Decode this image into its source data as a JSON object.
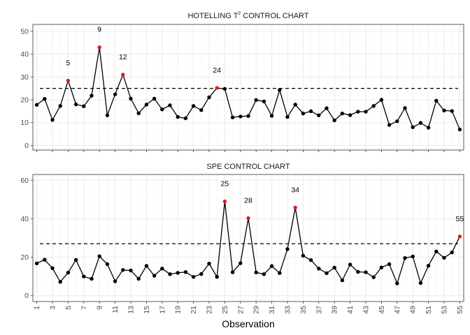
{
  "chart_data": [
    {
      "type": "line",
      "title": "HOTELLING T",
      "title_superscript": "2",
      "title_suffix": " CONTROL CHART",
      "ylim": [
        -2,
        53
      ],
      "yticks": [
        0,
        10,
        20,
        30,
        40,
        50
      ],
      "control_limit": 25,
      "x": [
        1,
        2,
        3,
        4,
        5,
        6,
        7,
        8,
        9,
        10,
        11,
        12,
        13,
        14,
        15,
        16,
        17,
        18,
        19,
        20,
        21,
        22,
        23,
        24,
        25,
        26,
        27,
        28,
        29,
        30,
        31,
        32,
        33,
        34,
        35,
        36,
        37,
        38,
        39,
        40,
        41,
        42,
        43,
        44,
        45,
        46,
        47,
        48,
        49,
        50,
        51,
        52,
        53,
        54,
        55
      ],
      "values": [
        17.8,
        20.4,
        11.2,
        17.3,
        28.4,
        18.0,
        17.2,
        21.8,
        43.0,
        13.2,
        22.4,
        31.0,
        20.5,
        14.1,
        17.9,
        20.5,
        15.8,
        17.6,
        12.5,
        11.9,
        17.3,
        15.5,
        21.1,
        25.2,
        24.8,
        12.3,
        12.7,
        12.9,
        19.9,
        19.3,
        13.0,
        24.3,
        12.5,
        17.9,
        14.0,
        15.0,
        13.2,
        16.3,
        11.0,
        14.0,
        13.3,
        14.8,
        14.8,
        17.3,
        20.0,
        9.0,
        10.6,
        16.4,
        8.0,
        9.9,
        7.8,
        19.6,
        15.3,
        15.1,
        7.0
      ],
      "outliers": [
        5,
        9,
        12,
        24
      ],
      "outlier_labels": [
        "5",
        "9",
        "12",
        "24"
      ]
    },
    {
      "type": "line",
      "title": "SPE CONTROL CHART",
      "ylim": [
        -3,
        63
      ],
      "yticks": [
        0,
        20,
        40,
        60
      ],
      "control_limit": 27,
      "x": [
        1,
        2,
        3,
        4,
        5,
        6,
        7,
        8,
        9,
        10,
        11,
        12,
        13,
        14,
        15,
        16,
        17,
        18,
        19,
        20,
        21,
        22,
        23,
        24,
        25,
        26,
        27,
        28,
        29,
        30,
        31,
        32,
        33,
        34,
        35,
        36,
        37,
        38,
        39,
        40,
        41,
        42,
        43,
        44,
        45,
        46,
        47,
        48,
        49,
        50,
        51,
        52,
        53,
        54,
        55
      ],
      "values": [
        16.8,
        18.7,
        14.3,
        7.2,
        12.0,
        18.6,
        10.0,
        8.8,
        20.5,
        16.4,
        7.5,
        13.4,
        13.1,
        8.8,
        15.5,
        10.4,
        14.1,
        11.2,
        11.9,
        12.3,
        9.8,
        11.3,
        16.7,
        9.8,
        49.0,
        12.2,
        16.9,
        40.3,
        12.1,
        11.2,
        15.4,
        11.8,
        24.2,
        45.8,
        20.8,
        18.5,
        14.1,
        11.7,
        14.6,
        8.0,
        16.2,
        12.4,
        12.2,
        9.6,
        14.7,
        16.4,
        6.4,
        19.6,
        20.4,
        6.6,
        15.6,
        23.0,
        19.7,
        22.5,
        30.8
      ],
      "outliers": [
        25,
        28,
        34,
        55
      ],
      "outlier_labels": [
        "25",
        "28",
        "34",
        "55"
      ]
    }
  ],
  "x_axis": {
    "label": "Observation",
    "ticks": [
      "1",
      "3",
      "5",
      "7",
      "9",
      "11",
      "13",
      "15",
      "17",
      "19",
      "21",
      "23",
      "25",
      "27",
      "29",
      "31",
      "33",
      "35",
      "37",
      "39",
      "41",
      "43",
      "45",
      "47",
      "49",
      "51",
      "53",
      "55"
    ]
  },
  "colors": {
    "point": "#000000",
    "outlier": "#e31a1c",
    "line": "#000000",
    "control_limit": "#000000",
    "grid_major": "#ebebeb",
    "grid_minor": "#f4f4f4",
    "border": "#333333"
  }
}
